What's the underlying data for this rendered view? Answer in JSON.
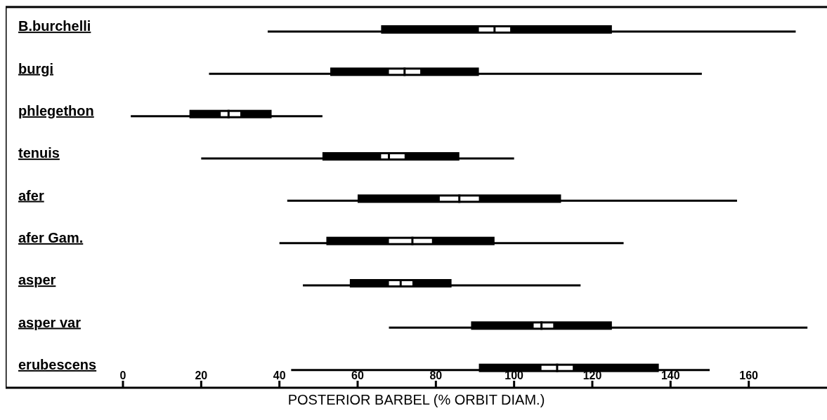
{
  "chart_data": {
    "type": "box",
    "orientation": "horizontal",
    "xlabel": "POSTERIOR BARBEL (% ORBIT DIAM.)",
    "categories": [
      "B.burchelli",
      "burgi",
      "phlegethon",
      "tenuis",
      "afer",
      "afer Gam.",
      "asper",
      "asper var",
      "erubescens"
    ],
    "xlim": [
      -30,
      180
    ],
    "xticks": [
      0,
      20,
      40,
      60,
      80,
      100,
      120,
      140,
      160
    ],
    "series": [
      {
        "color": "#000000",
        "boxes": [
          {
            "low": 37,
            "q1": 66,
            "median": 95,
            "q3": 125,
            "high": 172
          },
          {
            "low": 22,
            "q1": 53,
            "median": 72,
            "q3": 91,
            "high": 148
          },
          {
            "low": 2,
            "q1": 17,
            "median": 27,
            "q3": 38,
            "high": 51
          },
          {
            "low": 20,
            "q1": 51,
            "median": 68,
            "q3": 86,
            "high": 100
          },
          {
            "low": 42,
            "q1": 60,
            "median": 86,
            "q3": 112,
            "high": 157
          },
          {
            "low": 40,
            "q1": 52,
            "median": 74,
            "q3": 95,
            "high": 128
          },
          {
            "low": 46,
            "q1": 58,
            "median": 71,
            "q3": 84,
            "high": 117
          },
          {
            "low": 68,
            "q1": 89,
            "median": 107,
            "q3": 125,
            "high": 175
          },
          {
            "low": 43,
            "q1": 91,
            "median": 111,
            "q3": 137,
            "high": 150
          }
        ]
      },
      {
        "type": "bar",
        "color": "#ffffff",
        "base": [
          91,
          68,
          25,
          66,
          81,
          68,
          68,
          105,
          107
        ],
        "values": [
          8,
          8,
          5,
          6,
          10,
          11,
          6,
          5,
          8
        ]
      }
    ]
  }
}
